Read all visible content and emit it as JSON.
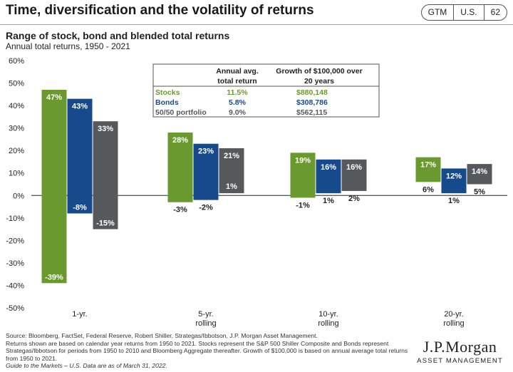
{
  "header": {
    "title": "Time, diversification and the volatility of returns",
    "badges": [
      "GTM",
      "U.S.",
      "62"
    ]
  },
  "chart_data": {
    "type": "bar",
    "title": "Range of stock, bond and blended total returns",
    "subtitle": "Annual total returns, 1950 - 2021",
    "ylim": [
      -50,
      60
    ],
    "ytick_step": 10,
    "yticks": [
      "60%",
      "50%",
      "40%",
      "30%",
      "20%",
      "10%",
      "0%",
      "-10%",
      "-20%",
      "-30%",
      "-40%",
      "-50%"
    ],
    "categories": [
      [
        "1-yr."
      ],
      [
        "5-yr.",
        "rolling"
      ],
      [
        "10-yr.",
        "rolling"
      ],
      [
        "20-yr.",
        "rolling"
      ]
    ],
    "series": [
      {
        "name": "Stocks",
        "color": "#6a9a2f",
        "high": [
          47,
          28,
          19,
          17
        ],
        "low": [
          -39,
          -3,
          -1,
          6
        ],
        "high_labels": [
          "47%",
          "28%",
          "19%",
          "17%"
        ],
        "low_labels": [
          "-39%",
          "-3%",
          "-1%",
          "6%"
        ]
      },
      {
        "name": "Bonds",
        "color": "#174a8c",
        "high": [
          43,
          23,
          16,
          12
        ],
        "low": [
          -8,
          -2,
          1,
          1
        ],
        "high_labels": [
          "43%",
          "23%",
          "16%",
          "12%"
        ],
        "low_labels": [
          "-8%",
          "-2%",
          "1%",
          "1%"
        ]
      },
      {
        "name": "50/50 portfolio",
        "color": "#55595c",
        "high": [
          33,
          21,
          16,
          14
        ],
        "low": [
          -15,
          1,
          2,
          5
        ],
        "high_labels": [
          "33%",
          "21%",
          "16%",
          "14%"
        ],
        "low_labels": [
          "-15%",
          "1%",
          "2%",
          "5%"
        ]
      }
    ],
    "table": {
      "headers": [
        [
          "",
          ""
        ],
        [
          "Annual avg.",
          "total return"
        ],
        [
          "Growth of $100,000 over",
          "20 years"
        ]
      ],
      "rows": [
        {
          "label": "Stocks",
          "avg": "11.5%",
          "growth": "$880,148",
          "color": "#6a9a2f"
        },
        {
          "label": "Bonds",
          "avg": "5.8%",
          "growth": "$308,786",
          "color": "#174a8c"
        },
        {
          "label": "50/50 portfolio",
          "avg": "9.0%",
          "growth": "$562,115",
          "color": "#55595c"
        }
      ]
    }
  },
  "footnote": {
    "line1": "Source: Bloomberg, FactSet, Federal Reserve, Robert Shiller, Strategas/Ibbotson, J.P. Morgan Asset Management.",
    "line2": "Returns shown are based on calendar year returns from 1950 to 2021. Stocks represent the S&P 500 Shiller Composite and Bonds represent Strategas/Ibbotson for periods from 1950 to 2010 and Bloomberg Aggregate thereafter. Growth of $100,000 is based on annual average total returns from 1950 to 2021.",
    "line3": "Guide to the Markets – U.S. Data are as of March 31, 2022."
  },
  "logo": {
    "brand": "J.P.Morgan",
    "sub": "ASSET MANAGEMENT"
  }
}
